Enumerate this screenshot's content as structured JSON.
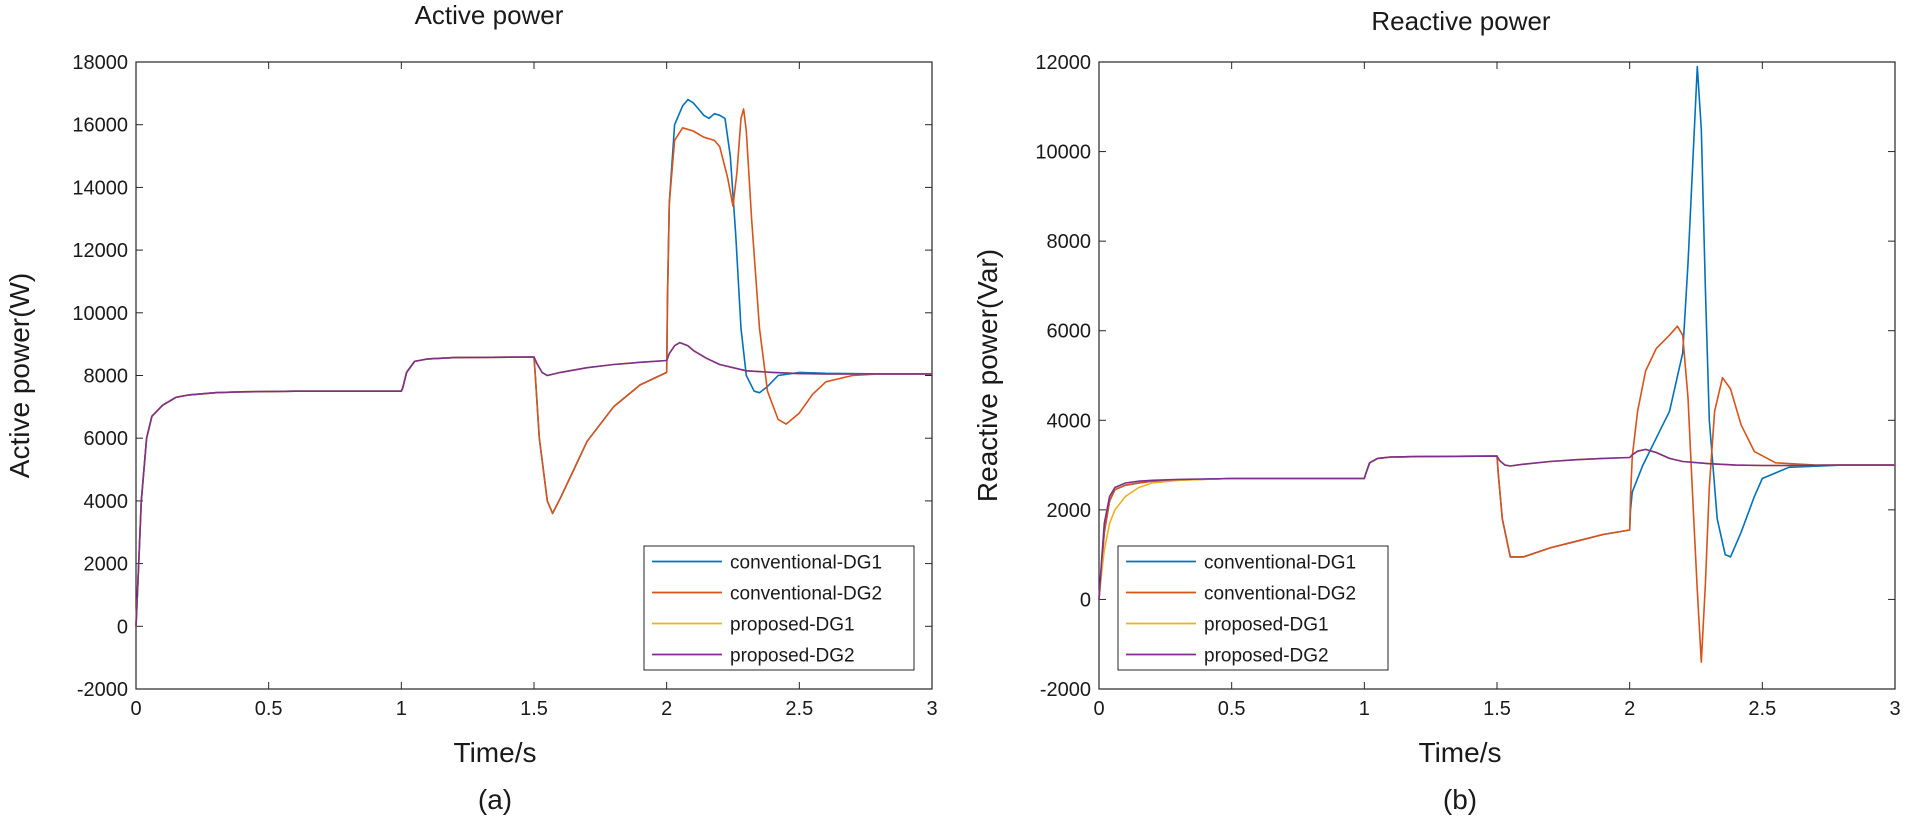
{
  "chart_data": [
    {
      "type": "line",
      "panel": "a",
      "title": "Active power",
      "xlabel": "Time/s",
      "ylabel": "Active power(W)",
      "caption": "(a)",
      "xlim": [
        0,
        3
      ],
      "ylim": [
        -2000,
        18000
      ],
      "xticks": [
        0,
        0.5,
        1,
        1.5,
        2,
        2.5,
        3
      ],
      "xtick_labels": [
        "0",
        "0.5",
        "1",
        "1.5",
        "2",
        "2.5",
        "3"
      ],
      "yticks": [
        -2000,
        0,
        2000,
        4000,
        6000,
        8000,
        10000,
        12000,
        14000,
        16000,
        18000
      ],
      "ytick_labels": [
        "-2000",
        "0",
        "2000",
        "4000",
        "6000",
        "8000",
        "10000",
        "12000",
        "14000",
        "16000",
        "18000"
      ],
      "legend": "bottom-right",
      "series": [
        {
          "name": "conventional-DG1",
          "color": "#0072BD",
          "x": [
            0,
            0.01,
            0.02,
            0.04,
            0.06,
            0.1,
            0.15,
            0.2,
            0.3,
            0.4,
            0.6,
            0.8,
            1.0,
            1.005,
            1.02,
            1.05,
            1.1,
            1.2,
            1.5,
            1.505,
            1.52,
            1.55,
            1.57,
            1.6,
            1.65,
            1.7,
            1.8,
            1.9,
            2.0,
            2.003,
            2.01,
            2.03,
            2.06,
            2.08,
            2.1,
            2.12,
            2.14,
            2.16,
            2.18,
            2.2,
            2.22,
            2.24,
            2.26,
            2.28,
            2.3,
            2.33,
            2.35,
            2.38,
            2.42,
            2.5,
            2.6,
            2.8,
            3.0
          ],
          "values": [
            0,
            2000,
            4000,
            6000,
            6700,
            7050,
            7300,
            7380,
            7450,
            7480,
            7500,
            7500,
            7500,
            7600,
            8100,
            8450,
            8530,
            8570,
            8590,
            8000,
            6000,
            4000,
            3600,
            4100,
            5000,
            5900,
            7000,
            7700,
            8100,
            10500,
            13500,
            16000,
            16600,
            16800,
            16700,
            16500,
            16300,
            16200,
            16350,
            16300,
            16200,
            15000,
            12500,
            9500,
            8000,
            7500,
            7450,
            7650,
            8000,
            8100,
            8070,
            8050,
            8050
          ]
        },
        {
          "name": "conventional-DG2",
          "color": "#D95319",
          "x": [
            0,
            0.01,
            0.02,
            0.04,
            0.06,
            0.1,
            0.15,
            0.2,
            0.3,
            0.4,
            0.6,
            0.8,
            1.0,
            1.005,
            1.02,
            1.05,
            1.1,
            1.2,
            1.5,
            1.505,
            1.52,
            1.55,
            1.57,
            1.6,
            1.65,
            1.7,
            1.8,
            1.9,
            2.0,
            2.003,
            2.01,
            2.03,
            2.06,
            2.1,
            2.14,
            2.18,
            2.2,
            2.23,
            2.25,
            2.265,
            2.28,
            2.29,
            2.3,
            2.32,
            2.35,
            2.38,
            2.42,
            2.45,
            2.5,
            2.55,
            2.6,
            2.7,
            2.8,
            3.0
          ],
          "values": [
            0,
            2000,
            4000,
            6000,
            6700,
            7050,
            7300,
            7380,
            7450,
            7480,
            7500,
            7500,
            7500,
            7600,
            8100,
            8450,
            8530,
            8570,
            8590,
            8000,
            6000,
            4000,
            3600,
            4100,
            5000,
            5900,
            7000,
            7700,
            8100,
            10500,
            13500,
            15500,
            15900,
            15800,
            15600,
            15500,
            15300,
            14300,
            13400,
            14500,
            16200,
            16500,
            15800,
            13000,
            9500,
            7500,
            6600,
            6450,
            6800,
            7400,
            7800,
            8000,
            8050,
            8050
          ]
        },
        {
          "name": "proposed-DG1",
          "color": "#EDB120",
          "x": [
            0,
            0.01,
            0.02,
            0.04,
            0.06,
            0.1,
            0.15,
            0.2,
            0.3,
            0.4,
            0.6,
            0.8,
            1.0,
            1.005,
            1.02,
            1.05,
            1.1,
            1.2,
            1.5,
            1.51,
            1.53,
            1.55,
            1.6,
            1.7,
            1.8,
            1.9,
            2.0,
            2.01,
            2.03,
            2.05,
            2.08,
            2.1,
            2.15,
            2.2,
            2.3,
            2.4,
            2.5,
            2.6,
            2.8,
            3.0
          ],
          "values": [
            0,
            2000,
            4000,
            6000,
            6700,
            7050,
            7300,
            7380,
            7450,
            7480,
            7500,
            7500,
            7500,
            7600,
            8100,
            8450,
            8530,
            8570,
            8590,
            8400,
            8100,
            8000,
            8100,
            8250,
            8350,
            8420,
            8480,
            8700,
            8950,
            9050,
            8950,
            8800,
            8550,
            8350,
            8150,
            8100,
            8060,
            8050,
            8050,
            8050
          ]
        },
        {
          "name": "proposed-DG2",
          "color": "#7E2F8E",
          "x": [
            0,
            0.01,
            0.02,
            0.04,
            0.06,
            0.1,
            0.15,
            0.2,
            0.3,
            0.4,
            0.6,
            0.8,
            1.0,
            1.005,
            1.02,
            1.05,
            1.1,
            1.2,
            1.5,
            1.51,
            1.53,
            1.55,
            1.6,
            1.7,
            1.8,
            1.9,
            2.0,
            2.01,
            2.03,
            2.05,
            2.08,
            2.1,
            2.15,
            2.2,
            2.3,
            2.4,
            2.5,
            2.6,
            2.8,
            3.0
          ],
          "values": [
            0,
            2000,
            4000,
            6000,
            6700,
            7050,
            7300,
            7380,
            7450,
            7480,
            7500,
            7500,
            7500,
            7600,
            8100,
            8450,
            8530,
            8570,
            8590,
            8400,
            8100,
            8000,
            8100,
            8250,
            8350,
            8420,
            8480,
            8700,
            8950,
            9050,
            8950,
            8800,
            8550,
            8350,
            8150,
            8100,
            8060,
            8050,
            8050,
            8050
          ]
        }
      ]
    },
    {
      "type": "line",
      "panel": "b",
      "title": "Reactive power",
      "xlabel": "Time/s",
      "ylabel": "Reactive power(Var)",
      "caption": "(b)",
      "xlim": [
        0,
        3
      ],
      "ylim": [
        -2000,
        12000
      ],
      "xticks": [
        0,
        0.5,
        1,
        1.5,
        2,
        2.5,
        3
      ],
      "xtick_labels": [
        "0",
        "0.5",
        "1",
        "1.5",
        "2",
        "2.5",
        "3"
      ],
      "yticks": [
        -2000,
        0,
        2000,
        4000,
        6000,
        8000,
        10000,
        12000
      ],
      "ytick_labels": [
        "-2000",
        "0",
        "2000",
        "4000",
        "6000",
        "8000",
        "10000",
        "12000"
      ],
      "legend": "bottom-left",
      "series": [
        {
          "name": "conventional-DG1",
          "color": "#0072BD",
          "x": [
            0,
            0.01,
            0.02,
            0.04,
            0.06,
            0.1,
            0.15,
            0.2,
            0.3,
            0.5,
            0.8,
            1.0,
            1.005,
            1.02,
            1.05,
            1.1,
            1.2,
            1.5,
            1.505,
            1.52,
            1.55,
            1.6,
            1.7,
            1.8,
            1.9,
            2.0,
            2.003,
            2.01,
            2.05,
            2.1,
            2.15,
            2.2,
            2.22,
            2.24,
            2.255,
            2.27,
            2.285,
            2.3,
            2.33,
            2.36,
            2.38,
            2.42,
            2.47,
            2.5,
            2.6,
            2.8,
            3.0
          ],
          "values": [
            0,
            800,
            1500,
            2200,
            2450,
            2550,
            2600,
            2640,
            2670,
            2700,
            2700,
            2700,
            2800,
            3050,
            3150,
            3180,
            3190,
            3200,
            2800,
            1800,
            950,
            950,
            1150,
            1300,
            1450,
            1550,
            2000,
            2400,
            3000,
            3600,
            4200,
            5500,
            7500,
            10000,
            11900,
            10500,
            7000,
            4000,
            1800,
            1000,
            950,
            1500,
            2300,
            2700,
            2950,
            3000,
            3000
          ]
        },
        {
          "name": "conventional-DG2",
          "color": "#D95319",
          "x": [
            0,
            0.01,
            0.02,
            0.04,
            0.06,
            0.1,
            0.15,
            0.2,
            0.3,
            0.5,
            0.8,
            1.0,
            1.005,
            1.02,
            1.05,
            1.1,
            1.2,
            1.5,
            1.505,
            1.52,
            1.55,
            1.6,
            1.7,
            1.8,
            1.9,
            2.0,
            2.003,
            2.01,
            2.03,
            2.06,
            2.1,
            2.15,
            2.18,
            2.2,
            2.22,
            2.24,
            2.255,
            2.27,
            2.285,
            2.3,
            2.32,
            2.35,
            2.38,
            2.42,
            2.47,
            2.55,
            2.7,
            3.0
          ],
          "values": [
            0,
            800,
            1500,
            2200,
            2450,
            2550,
            2600,
            2640,
            2670,
            2700,
            2700,
            2700,
            2800,
            3050,
            3150,
            3180,
            3190,
            3200,
            2800,
            1800,
            950,
            950,
            1150,
            1300,
            1450,
            1550,
            2300,
            3200,
            4200,
            5100,
            5600,
            5900,
            6100,
            5900,
            4500,
            2000,
            200,
            -1400,
            300,
            2500,
            4200,
            4950,
            4700,
            3900,
            3300,
            3050,
            3000,
            3000
          ]
        },
        {
          "name": "proposed-DG1",
          "color": "#EDB120",
          "x": [
            0,
            0.01,
            0.02,
            0.04,
            0.06,
            0.1,
            0.15,
            0.2,
            0.3,
            0.5,
            0.8,
            1.0,
            1.005,
            1.02,
            1.05,
            1.1,
            1.2,
            1.5,
            1.51,
            1.53,
            1.55,
            1.6,
            1.7,
            1.8,
            1.9,
            2.0,
            2.01,
            2.03,
            2.06,
            2.1,
            2.15,
            2.2,
            2.3,
            2.4,
            2.5,
            2.6,
            2.8,
            3.0
          ],
          "values": [
            0,
            600,
            1100,
            1700,
            2000,
            2300,
            2500,
            2600,
            2660,
            2700,
            2700,
            2700,
            2800,
            3050,
            3150,
            3180,
            3190,
            3200,
            3100,
            3000,
            2980,
            3020,
            3080,
            3120,
            3150,
            3170,
            3230,
            3310,
            3350,
            3280,
            3150,
            3080,
            3030,
            3000,
            2990,
            2990,
            3000,
            3000
          ]
        },
        {
          "name": "proposed-DG2",
          "color": "#7E2F8E",
          "x": [
            0,
            0.01,
            0.02,
            0.04,
            0.06,
            0.1,
            0.15,
            0.2,
            0.3,
            0.5,
            0.8,
            1.0,
            1.005,
            1.02,
            1.05,
            1.1,
            1.2,
            1.5,
            1.51,
            1.53,
            1.55,
            1.6,
            1.7,
            1.8,
            1.9,
            2.0,
            2.01,
            2.03,
            2.06,
            2.1,
            2.15,
            2.2,
            2.3,
            2.4,
            2.5,
            2.6,
            2.8,
            3.0
          ],
          "values": [
            0,
            900,
            1700,
            2300,
            2500,
            2600,
            2640,
            2660,
            2680,
            2700,
            2700,
            2700,
            2800,
            3050,
            3150,
            3180,
            3190,
            3200,
            3100,
            3000,
            2980,
            3020,
            3080,
            3120,
            3150,
            3170,
            3230,
            3310,
            3350,
            3280,
            3150,
            3080,
            3030,
            3000,
            2990,
            2990,
            3000,
            3000
          ]
        }
      ]
    }
  ]
}
